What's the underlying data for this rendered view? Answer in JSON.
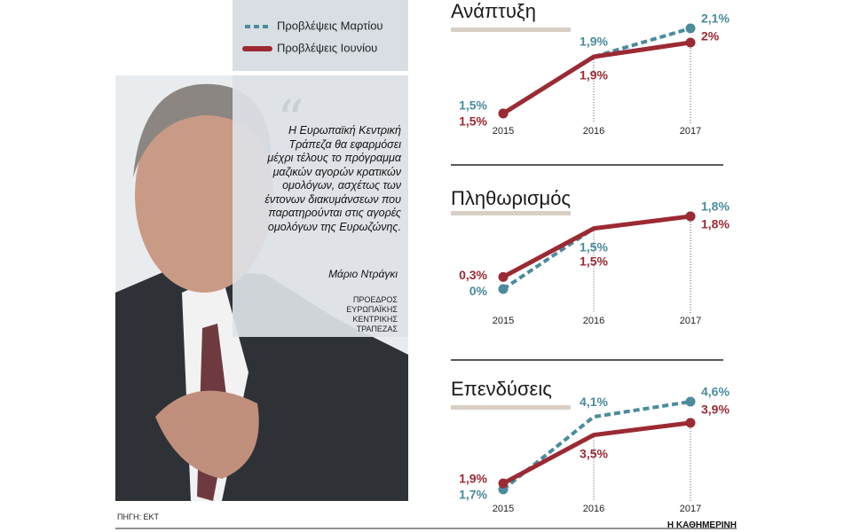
{
  "chart_data": [
    {
      "type": "line",
      "title": "Ανάπτυξη",
      "categories": [
        "2015",
        "2016",
        "2017"
      ],
      "series": [
        {
          "name": "Προβλέψεις Μαρτίου",
          "color": "#4a8b9c",
          "dashed": true,
          "values": [
            1.5,
            1.9,
            2.1
          ],
          "value_labels": [
            "1,5%",
            "1,9%",
            "2,1%"
          ]
        },
        {
          "name": "Προβλέψεις Ιουνίου",
          "color": "#9b2a33",
          "dashed": false,
          "values": [
            1.5,
            1.9,
            2.0
          ],
          "value_labels": [
            "1,5%",
            "1,9%",
            "2%"
          ]
        }
      ]
    },
    {
      "type": "line",
      "title": "Πληθωρισμός",
      "categories": [
        "2015",
        "2016",
        "2017"
      ],
      "series": [
        {
          "name": "Προβλέψεις Μαρτίου",
          "color": "#4a8b9c",
          "dashed": true,
          "values": [
            0,
            1.5,
            1.8
          ],
          "value_labels": [
            "0%",
            "1,5%",
            "1,8%"
          ]
        },
        {
          "name": "Προβλέψεις Ιουνίου",
          "color": "#9b2a33",
          "dashed": false,
          "values": [
            0.3,
            1.5,
            1.8
          ],
          "value_labels": [
            "0,3%",
            "1,5%",
            "1,8%"
          ]
        }
      ]
    },
    {
      "type": "line",
      "title": "Επενδύσεις",
      "categories": [
        "2015",
        "2016",
        "2017"
      ],
      "series": [
        {
          "name": "Προβλέψεις Μαρτίου",
          "color": "#4a8b9c",
          "dashed": true,
          "values": [
            1.7,
            4.1,
            4.6
          ],
          "value_labels": [
            "1,7%",
            "4,1%",
            "4,6%"
          ]
        },
        {
          "name": "Προβλέψεις Ιουνίου",
          "color": "#9b2a33",
          "dashed": false,
          "values": [
            1.9,
            3.5,
            3.9
          ],
          "value_labels": [
            "1,9%",
            "3,5%",
            "3,9%"
          ]
        }
      ]
    }
  ],
  "quote": {
    "text": "Η Ευρωπαϊκή Κεντρική Τράπεζα θα εφαρμόσει μέχρι τέλους το πρόγραμμα μαζικών αγορών κρατικών ομολόγων, ασχέτως των έντονων διακυμάνσεων που παρατηρούνται στις αγορές ομολόγων της Ευρωζώνης.",
    "author": "Μάριο Ντράγκι",
    "role": "ΠΡΟΕΔΡΟΣ ΕΥΡΩΠΑΪΚΗΣ ΚΕΝΤΡΙΚΗΣ ΤΡΑΠΕΖΑΣ"
  },
  "source": "ΠΗΓΗ: ΕΚΤ",
  "publisher": "Η ΚΑΘΗΜΕΡΙΝΗ"
}
